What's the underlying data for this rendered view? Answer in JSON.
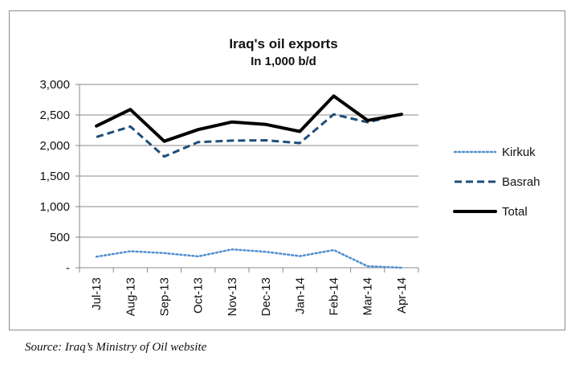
{
  "chart_data": {
    "type": "line",
    "title": "Iraq's oil exports",
    "subtitle": "In 1,000 b/d",
    "xlabel": "",
    "ylabel": "",
    "ylim": [
      0,
      3000
    ],
    "yticks": [
      0,
      500,
      1000,
      1500,
      2000,
      2500,
      3000
    ],
    "ytick_labels": [
      "-",
      "500",
      "1,000",
      "1,500",
      "2,000",
      "2,500",
      "3,000"
    ],
    "categories": [
      "Jul-13",
      "Aug-13",
      "Sep-13",
      "Oct-13",
      "Nov-13",
      "Dec-13",
      "Jan-14",
      "Feb-14",
      "Mar-14",
      "Apr-14"
    ],
    "legend_position": "right",
    "grid": true,
    "series": [
      {
        "name": "Kirkuk",
        "style": "dotted",
        "color": "#4f8fd0",
        "values": [
          180,
          270,
          240,
          185,
          300,
          260,
          190,
          290,
          25,
          0
        ]
      },
      {
        "name": "Basrah",
        "style": "dashed",
        "color": "#1f4e79",
        "values": [
          2140,
          2310,
          1820,
          2055,
          2080,
          2085,
          2040,
          2510,
          2380,
          2510
        ]
      },
      {
        "name": "Total",
        "style": "solid",
        "color": "#000000",
        "values": [
          2320,
          2590,
          2070,
          2260,
          2385,
          2345,
          2230,
          2810,
          2410,
          2510
        ]
      }
    ]
  },
  "source_note": "Source: Iraq’s Ministry of Oil website"
}
